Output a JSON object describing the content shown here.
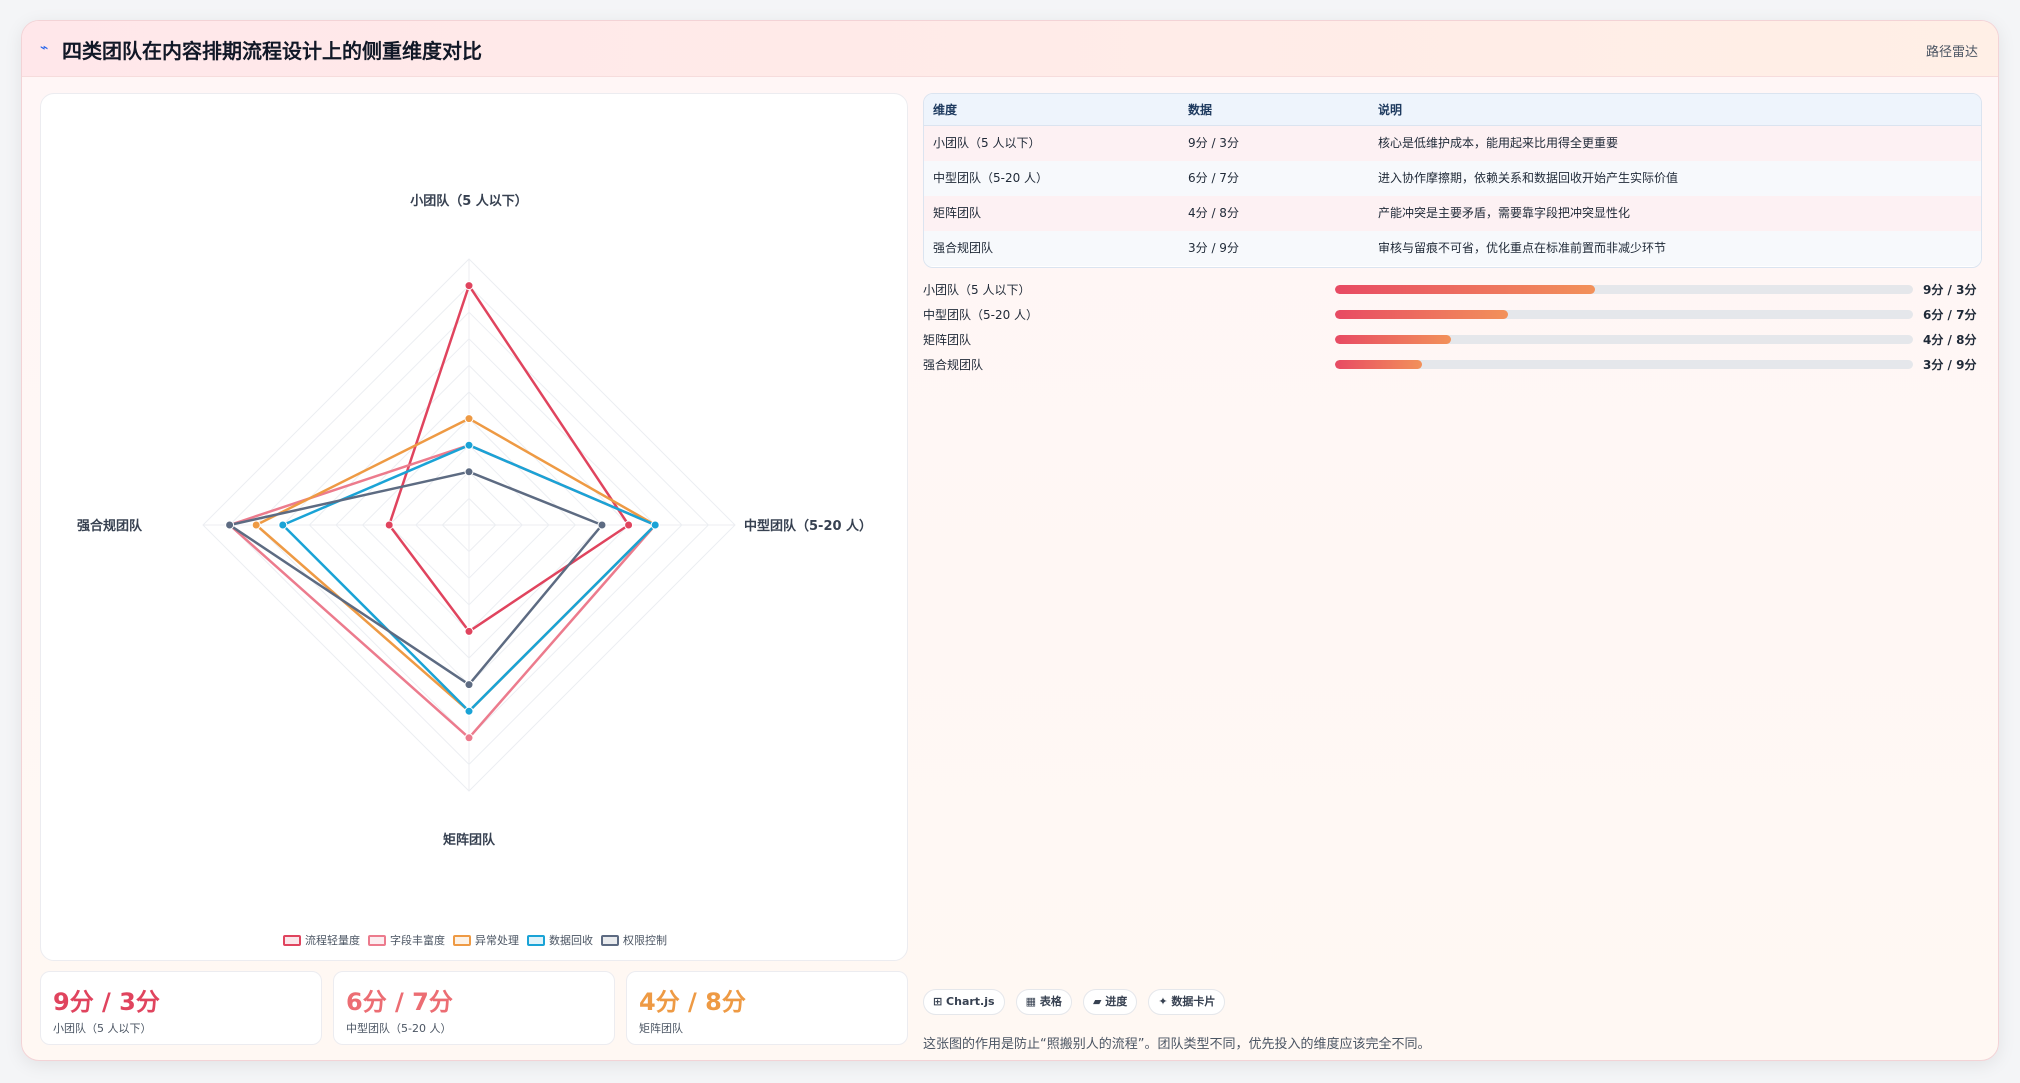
{
  "header": {
    "icon": "chart-icon",
    "title": "四类团队在内容排期流程设计上的侧重维度对比",
    "tag": "路径雷达"
  },
  "chart_data": {
    "type": "radar",
    "axes": [
      "小团队（5 人以下）",
      "中型团队（5-20 人）",
      "矩阵团队",
      "强合规团队"
    ],
    "range": [
      0,
      10
    ],
    "series": [
      {
        "name": "流程轻量度",
        "color": "#e0445e",
        "values": [
          9,
          6,
          4,
          3
        ]
      },
      {
        "name": "字段丰富度",
        "color": "#ec7b8d",
        "values": [
          3,
          7,
          8,
          9
        ]
      },
      {
        "name": "异常处理",
        "color": "#ee9a44",
        "values": [
          4,
          7,
          7,
          8
        ]
      },
      {
        "name": "数据回收",
        "color": "#1aa3d6",
        "values": [
          3,
          7,
          7,
          7
        ]
      },
      {
        "name": "权限控制",
        "color": "#5d6b82",
        "values": [
          2,
          5,
          6,
          9
        ]
      }
    ]
  },
  "stats": [
    {
      "value": "9分 / 3分",
      "label": "小团队（5 人以下）",
      "color": "#e0445e"
    },
    {
      "value": "6分 / 7分",
      "label": "中型团队（5-20 人）",
      "color": "#ec6d73"
    },
    {
      "value": "4分 / 8分",
      "label": "矩阵团队",
      "color": "#ee9a44"
    }
  ],
  "table": {
    "headers": [
      "维度",
      "数据",
      "说明"
    ],
    "rows": [
      [
        "小团队（5 人以下）",
        "9分 / 3分",
        "核心是低维护成本，能用起来比用得全更重要"
      ],
      [
        "中型团队（5-20 人）",
        "6分 / 7分",
        "进入协作摩擦期，依赖关系和数据回收开始产生实际价值"
      ],
      [
        "矩阵团队",
        "4分 / 8分",
        "产能冲突是主要矛盾，需要靠字段把冲突显性化"
      ],
      [
        "强合规团队",
        "3分 / 9分",
        "审核与留痕不可省，优化重点在标准前置而非减少环节"
      ]
    ]
  },
  "bars": [
    {
      "label": "小团队（5 人以下）",
      "fraction": 0.45,
      "value": "9分 / 3分"
    },
    {
      "label": "中型团队（5-20 人）",
      "fraction": 0.3,
      "value": "6分 / 7分"
    },
    {
      "label": "矩阵团队",
      "fraction": 0.2,
      "value": "4分 / 8分"
    },
    {
      "label": "强合规团队",
      "fraction": 0.15,
      "value": "3分 / 9分"
    }
  ],
  "chips": [
    "⊞ Chart.js",
    "▦ 表格",
    "▰ 进度",
    "✦ 数据卡片"
  ],
  "note": "这张图的作用是防止“照搬别人的流程”。团队类型不同，优先投入的维度应该完全不同。"
}
